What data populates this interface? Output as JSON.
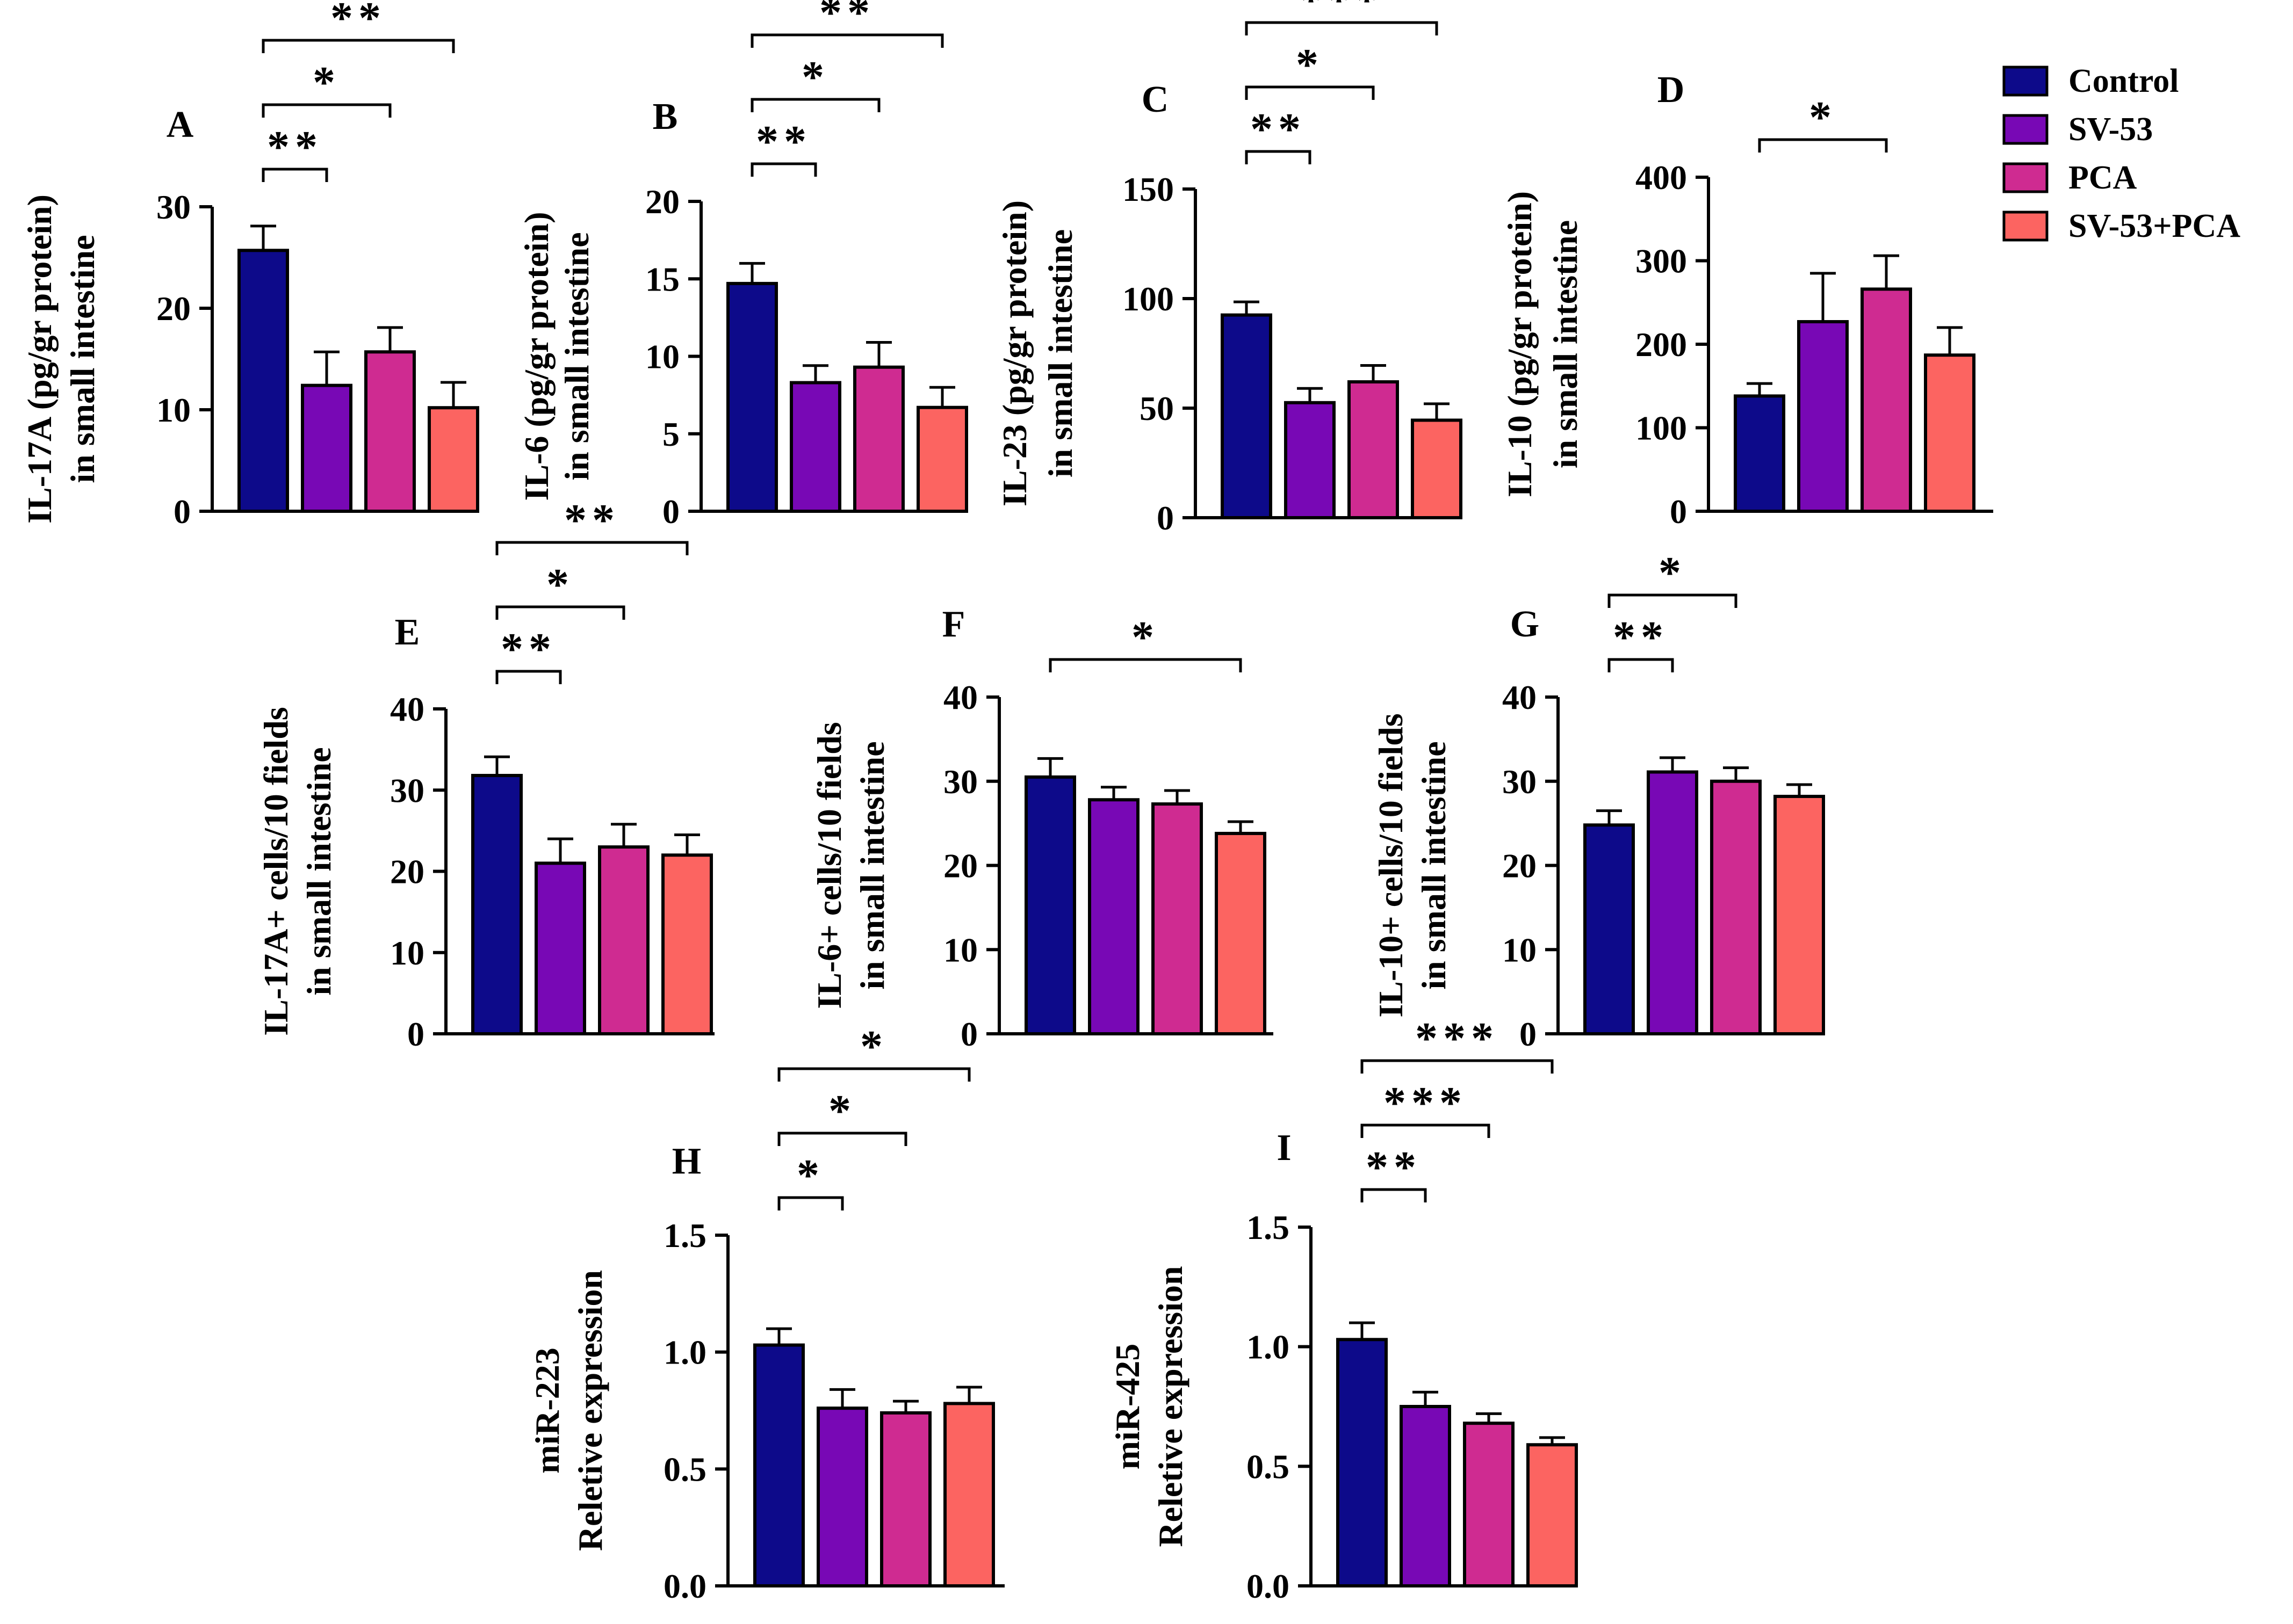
{
  "legend": {
    "items": [
      {
        "label": "Control",
        "color": "#0d0a8a"
      },
      {
        "label": "SV-53",
        "color": "#7808b5"
      },
      {
        "label": "PCA",
        "color": "#cf2b91"
      },
      {
        "label": "SV-53+PCA",
        "color": "#fc6461"
      }
    ]
  },
  "chart_data": [
    {
      "panel": "A",
      "type": "bar",
      "categories": [
        "Control",
        "SV-53",
        "PCA",
        "SV-53+PCA"
      ],
      "values": [
        25.7,
        12.4,
        15.7,
        10.2
      ],
      "errors": [
        2.4,
        3.3,
        2.4,
        2.5
      ],
      "ylabel_lines": [
        "IL-17A (pg/gr protein)",
        "in small intestine"
      ],
      "ylim": [
        0,
        30
      ],
      "yticks": [
        "0",
        "10",
        "20",
        "30"
      ],
      "significance": [
        {
          "from": 0,
          "to": 1,
          "label": "**"
        },
        {
          "from": 0,
          "to": 2,
          "label": "*"
        },
        {
          "from": 0,
          "to": 3,
          "label": "**"
        }
      ]
    },
    {
      "panel": "B",
      "type": "bar",
      "categories": [
        "Control",
        "SV-53",
        "PCA",
        "SV-53+PCA"
      ],
      "values": [
        14.7,
        8.3,
        9.3,
        6.7
      ],
      "errors": [
        1.3,
        1.1,
        1.6,
        1.3
      ],
      "ylabel_lines": [
        "IL-6 (pg/gr protein)",
        "in small intestine"
      ],
      "ylim": [
        0,
        20
      ],
      "yticks": [
        "0",
        "5",
        "10",
        "15",
        "20"
      ],
      "significance": [
        {
          "from": 0,
          "to": 1,
          "label": "**"
        },
        {
          "from": 0,
          "to": 2,
          "label": "*"
        },
        {
          "from": 0,
          "to": 3,
          "label": "**"
        }
      ]
    },
    {
      "panel": "C",
      "type": "bar",
      "categories": [
        "Control",
        "SV-53",
        "PCA",
        "SV-53+PCA"
      ],
      "values": [
        92.5,
        52.5,
        62.0,
        44.5
      ],
      "errors": [
        6.0,
        6.5,
        7.5,
        7.5
      ],
      "ylabel_lines": [
        "IL-23 (pg/gr protein)",
        "in small intestine"
      ],
      "ylim": [
        0,
        150
      ],
      "yticks": [
        "0",
        "50",
        "100",
        "150"
      ],
      "significance": [
        {
          "from": 0,
          "to": 1,
          "label": "**"
        },
        {
          "from": 0,
          "to": 2,
          "label": "*"
        },
        {
          "from": 0,
          "to": 3,
          "label": "***"
        }
      ]
    },
    {
      "panel": "D",
      "type": "bar",
      "categories": [
        "Control",
        "SV-53",
        "PCA",
        "SV-53+PCA"
      ],
      "values": [
        138,
        227,
        266,
        187
      ],
      "errors": [
        15,
        58,
        40,
        33
      ],
      "ylabel_lines": [
        "IL-10 (pg/gr protein)",
        "in small intestine"
      ],
      "ylim": [
        0,
        400
      ],
      "yticks": [
        "0",
        "100",
        "200",
        "300",
        "400"
      ],
      "significance": [
        {
          "from": 0,
          "to": 2,
          "label": "*"
        }
      ]
    },
    {
      "panel": "E",
      "type": "bar",
      "categories": [
        "Control",
        "SV-53",
        "PCA",
        "SV-53+PCA"
      ],
      "values": [
        31.8,
        21.0,
        23.0,
        22.0
      ],
      "errors": [
        2.3,
        3.0,
        2.8,
        2.5
      ],
      "ylabel_lines": [
        "IL-17A+ cells/10 fields",
        "in small intestine"
      ],
      "ylim": [
        0,
        40
      ],
      "yticks": [
        "0",
        "10",
        "20",
        "30",
        "40"
      ],
      "significance": [
        {
          "from": 0,
          "to": 1,
          "label": "**"
        },
        {
          "from": 0,
          "to": 2,
          "label": "*"
        },
        {
          "from": 0,
          "to": 3,
          "label": "**"
        }
      ]
    },
    {
      "panel": "F",
      "type": "bar",
      "categories": [
        "Control",
        "SV-53",
        "PCA",
        "SV-53+PCA"
      ],
      "values": [
        30.5,
        27.8,
        27.3,
        23.8
      ],
      "errors": [
        2.2,
        1.5,
        1.6,
        1.4
      ],
      "ylabel_lines": [
        "IL-6+ cells/10 fields",
        "in small intestine"
      ],
      "ylim": [
        0,
        40
      ],
      "yticks": [
        "0",
        "10",
        "20",
        "30",
        "40"
      ],
      "significance": [
        {
          "from": 0,
          "to": 3,
          "label": "*"
        }
      ]
    },
    {
      "panel": "G",
      "type": "bar",
      "categories": [
        "Control",
        "SV-53",
        "PCA",
        "SV-53+PCA"
      ],
      "values": [
        24.8,
        31.1,
        30.0,
        28.2
      ],
      "errors": [
        1.7,
        1.7,
        1.6,
        1.4
      ],
      "ylabel_lines": [
        "IL-10+ cells/10 fields",
        "in small intestine"
      ],
      "ylim": [
        0,
        40
      ],
      "yticks": [
        "0",
        "10",
        "20",
        "30",
        "40"
      ],
      "significance": [
        {
          "from": 0,
          "to": 1,
          "label": "**"
        },
        {
          "from": 0,
          "to": 2,
          "label": "*"
        }
      ]
    },
    {
      "panel": "H",
      "type": "bar",
      "categories": [
        "Control",
        "SV-53",
        "PCA",
        "SV-53+PCA"
      ],
      "values": [
        1.03,
        0.76,
        0.74,
        0.78
      ],
      "errors": [
        0.07,
        0.08,
        0.05,
        0.07
      ],
      "ylabel_lines": [
        "miR-223",
        "Reletive expression"
      ],
      "ylim": [
        0,
        1.5
      ],
      "yticks": [
        "0.0",
        "0.5",
        "1.0",
        "1.5"
      ],
      "significance": [
        {
          "from": 0,
          "to": 1,
          "label": "*"
        },
        {
          "from": 0,
          "to": 2,
          "label": "*"
        },
        {
          "from": 0,
          "to": 3,
          "label": "*"
        }
      ]
    },
    {
      "panel": "I",
      "type": "bar",
      "categories": [
        "Control",
        "SV-53",
        "PCA",
        "SV-53+PCA"
      ],
      "values": [
        1.03,
        0.75,
        0.68,
        0.59
      ],
      "errors": [
        0.07,
        0.06,
        0.04,
        0.03
      ],
      "ylabel_lines": [
        "miR-425",
        "Reletive expression"
      ],
      "ylim": [
        0,
        1.5
      ],
      "yticks": [
        "0.0",
        "0.5",
        "1.0",
        "1.5"
      ],
      "significance": [
        {
          "from": 0,
          "to": 1,
          "label": "**"
        },
        {
          "from": 0,
          "to": 2,
          "label": "***"
        },
        {
          "from": 0,
          "to": 3,
          "label": "***"
        }
      ]
    }
  ]
}
